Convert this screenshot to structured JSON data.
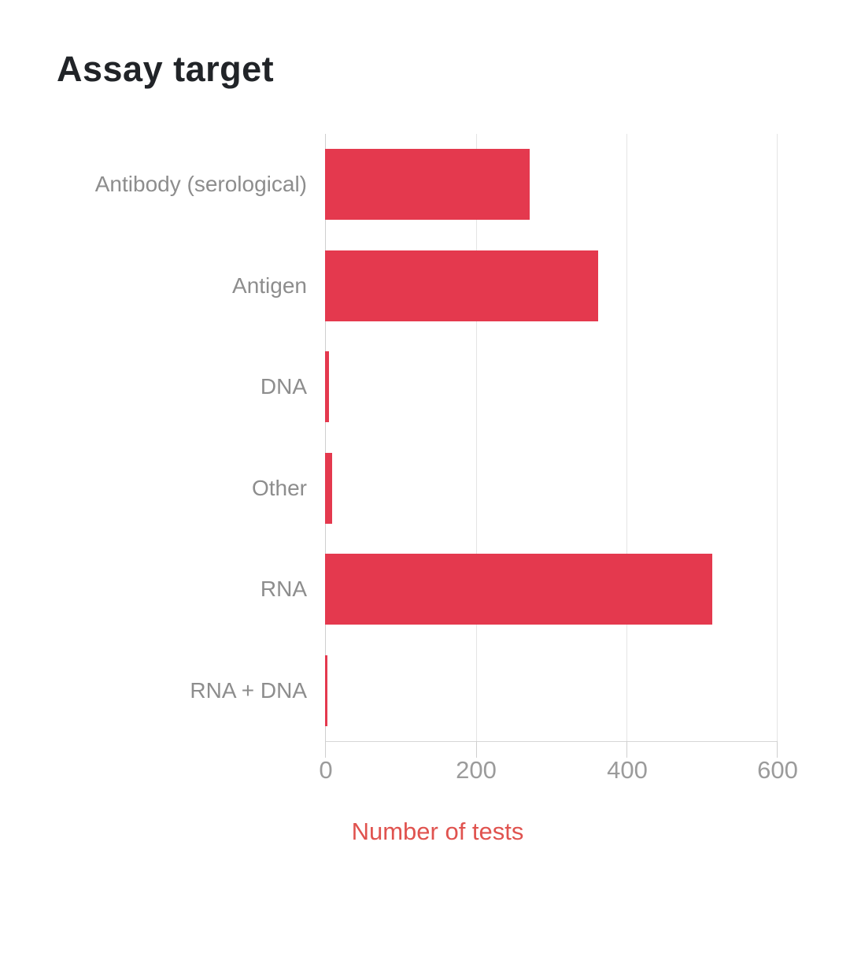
{
  "title": "Assay target",
  "chart_data": {
    "type": "bar",
    "orientation": "horizontal",
    "title": "Assay target",
    "categories": [
      "Antibody (serological)",
      "Antigen",
      "DNA",
      "Other",
      "RNA",
      "RNA + DNA"
    ],
    "values": [
      271,
      362,
      5,
      9,
      513,
      3
    ],
    "xlabel": "Number of tests",
    "ylabel": "",
    "x_ticks": [
      "0",
      "200",
      "400",
      "600"
    ],
    "xlim": [
      0,
      600
    ],
    "grid": "vertical-only",
    "legend": "none",
    "bar_color": "#e4394e",
    "axis_title_color": "#e0534f",
    "tick_label_color": "#9b9b9b",
    "category_label_color": "#8d8d8d",
    "title_color": "#212428"
  }
}
